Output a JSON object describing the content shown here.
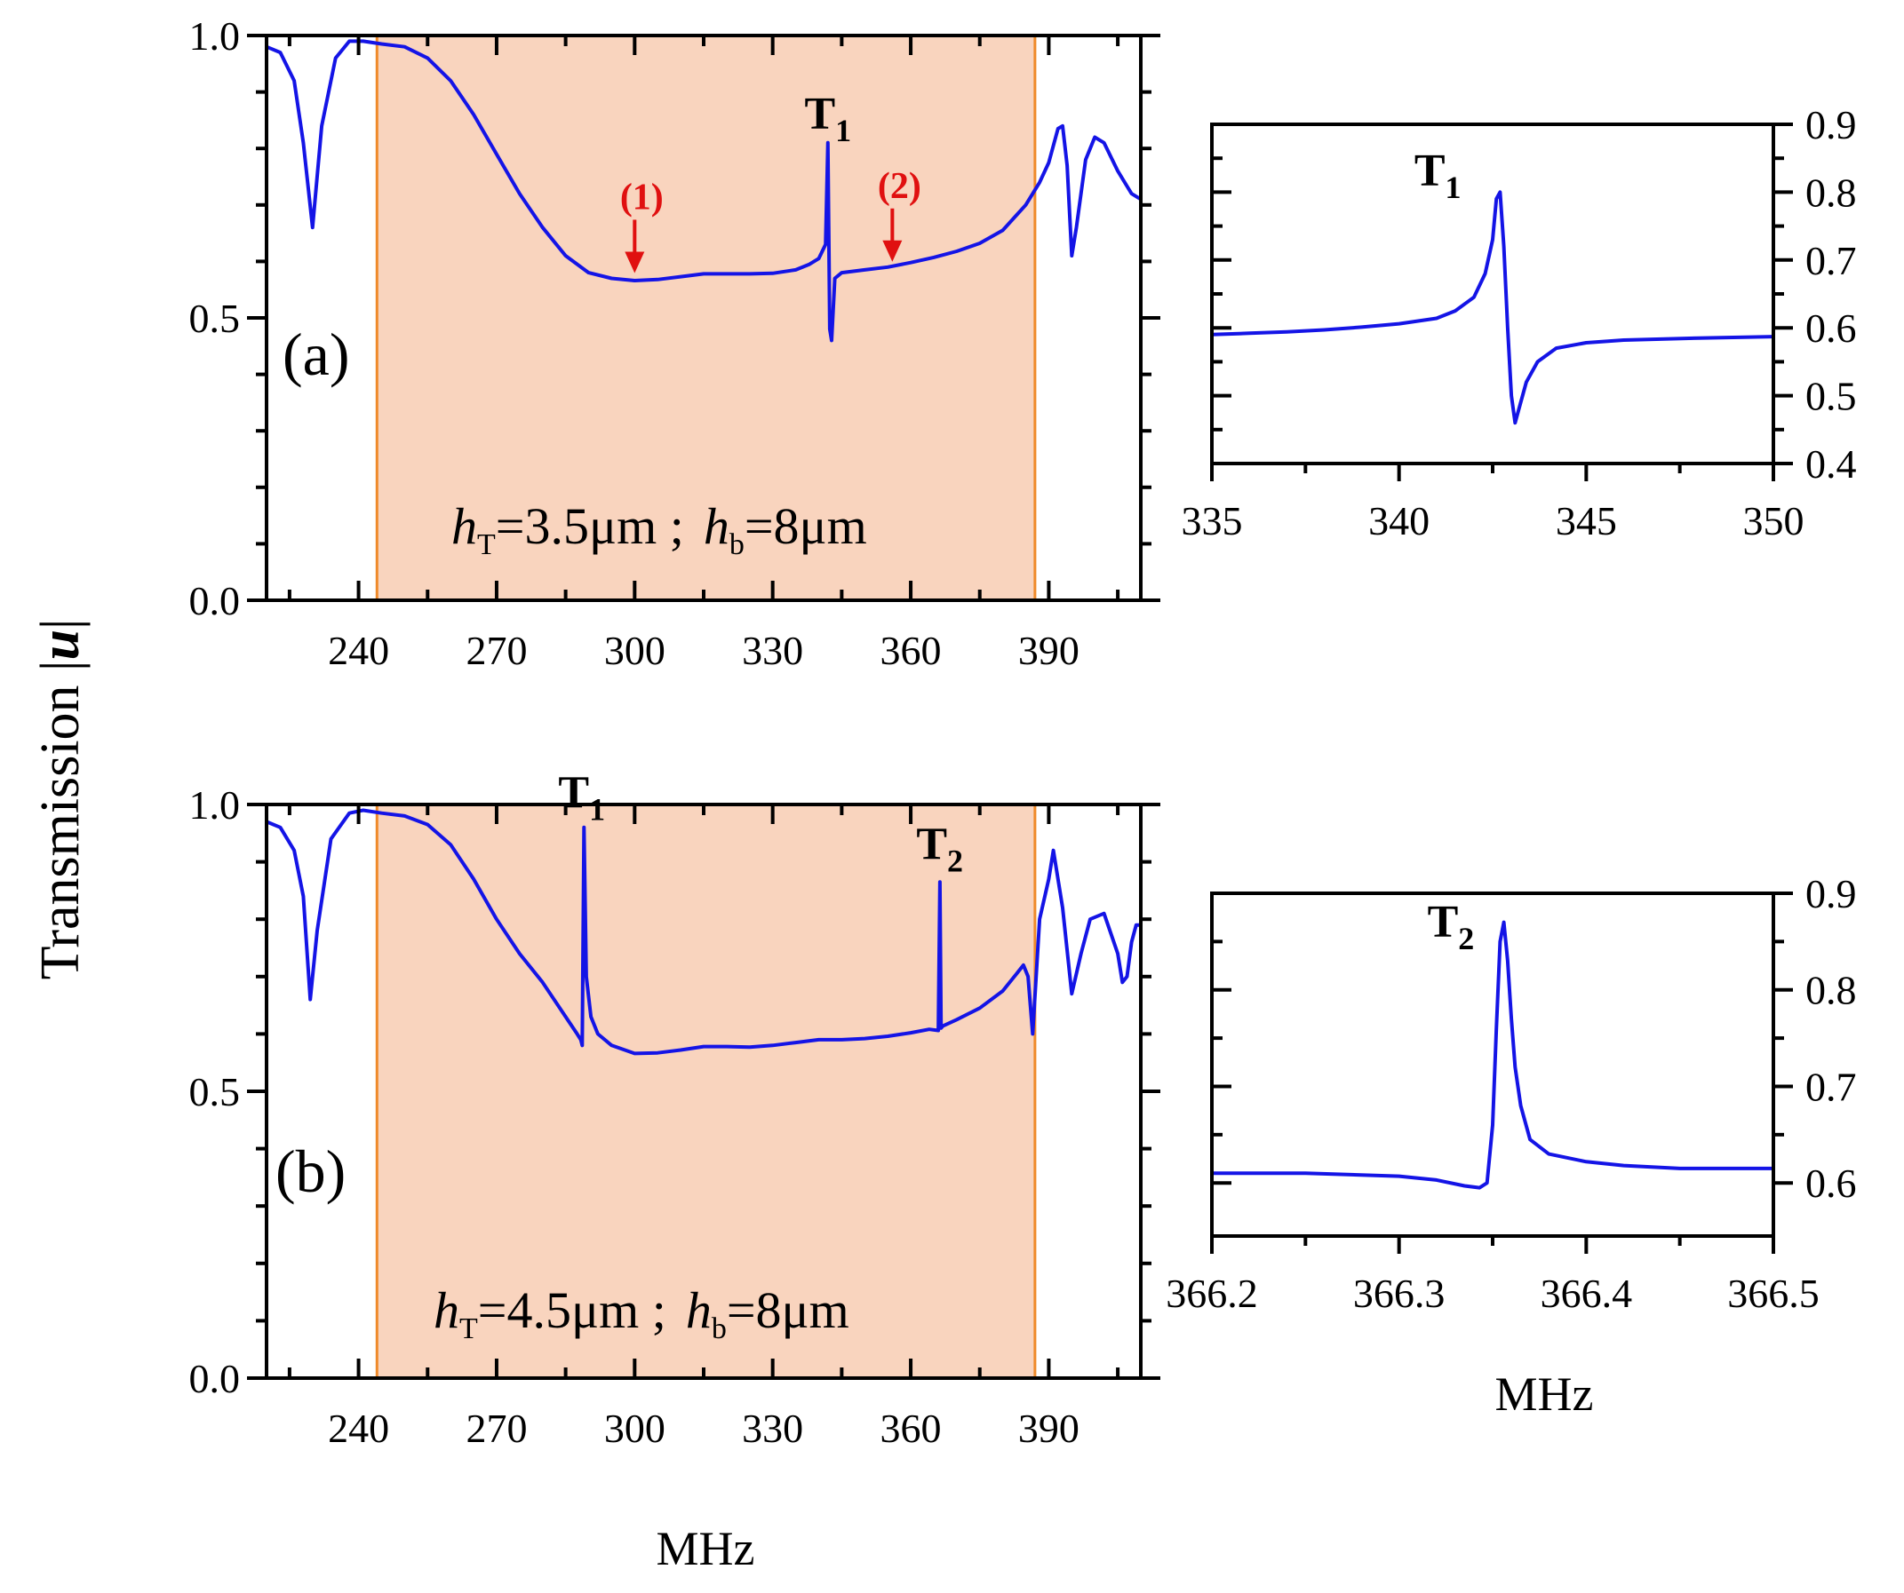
{
  "y_axis_title": "Transmission |",
  "y_axis_title_symbol": "u",
  "y_axis_title_close": "|",
  "shared_xlabel": "MHz",
  "inset_b_xlabel": "MHz",
  "chart_data": [
    {
      "id": "a",
      "type": "line",
      "panel_label": "(a)",
      "annotation": {
        "h_sym": "h",
        "T_sub": "T",
        "hT_value": "=3.5μm ;",
        "b_sub": "b",
        "hb_value": "=8μm"
      },
      "xlim": [
        220,
        410
      ],
      "ylim": [
        0,
        1.0
      ],
      "xticks": [
        240,
        270,
        300,
        330,
        360,
        390
      ],
      "yticks": [
        0.0,
        0.5,
        1.0
      ],
      "ytick_labels": [
        "0.0",
        "0.5",
        "1.0"
      ],
      "shaded_band": [
        244,
        387
      ],
      "peak_labels": [
        {
          "text": "T",
          "sub": "1",
          "x": 342,
          "y": 0.81
        }
      ],
      "arrows": [
        {
          "text": "(1)",
          "x": 300,
          "y": 0.57
        },
        {
          "text": "(2)",
          "x": 356,
          "y": 0.59
        }
      ],
      "series": [
        {
          "name": "transmission",
          "color": "#1414e6",
          "x": [
            220,
            223,
            226,
            228,
            230,
            232,
            235,
            238,
            241,
            245,
            250,
            255,
            260,
            265,
            270,
            275,
            280,
            285,
            290,
            295,
            300,
            305,
            310,
            315,
            320,
            325,
            330,
            335,
            338,
            340,
            341.5,
            342,
            342.4,
            342.8,
            343.5,
            345,
            350,
            355,
            360,
            365,
            370,
            375,
            380,
            385,
            388,
            390,
            392,
            393,
            394,
            395,
            396,
            398,
            400,
            402,
            405,
            408,
            410
          ],
          "values": [
            0.98,
            0.97,
            0.92,
            0.81,
            0.66,
            0.84,
            0.96,
            0.99,
            0.99,
            0.985,
            0.98,
            0.96,
            0.92,
            0.86,
            0.79,
            0.72,
            0.66,
            0.61,
            0.58,
            0.57,
            0.566,
            0.568,
            0.573,
            0.578,
            0.578,
            0.578,
            0.579,
            0.585,
            0.595,
            0.605,
            0.63,
            0.81,
            0.48,
            0.46,
            0.57,
            0.58,
            0.585,
            0.59,
            0.598,
            0.607,
            0.618,
            0.632,
            0.655,
            0.7,
            0.74,
            0.775,
            0.835,
            0.84,
            0.77,
            0.61,
            0.66,
            0.78,
            0.82,
            0.81,
            0.76,
            0.72,
            0.71
          ]
        }
      ]
    },
    {
      "id": "a-inset",
      "type": "line",
      "xlim": [
        335,
        350
      ],
      "ylim": [
        0.4,
        0.9
      ],
      "xticks": [
        335,
        340,
        345,
        350
      ],
      "xtick_labels": [
        "335",
        "340",
        "345",
        "350"
      ],
      "yticks": [
        0.4,
        0.5,
        0.6,
        0.7,
        0.8,
        0.9
      ],
      "ytick_labels": [
        "0.4",
        "0.5",
        "0.6",
        "0.7",
        "0.8",
        "0.9"
      ],
      "peak_labels": [
        {
          "text": "T",
          "sub": "1",
          "x": 341.8,
          "y": 0.81
        }
      ],
      "series": [
        {
          "name": "transmission",
          "color": "#1414e6",
          "x": [
            335,
            336,
            337,
            338,
            339,
            340,
            341,
            341.5,
            342,
            342.3,
            342.5,
            342.6,
            342.7,
            342.8,
            342.9,
            343.0,
            343.1,
            343.2,
            343.4,
            343.7,
            344.2,
            345,
            346,
            348,
            350
          ],
          "values": [
            0.59,
            0.592,
            0.594,
            0.597,
            0.601,
            0.606,
            0.614,
            0.625,
            0.645,
            0.68,
            0.73,
            0.79,
            0.8,
            0.72,
            0.6,
            0.5,
            0.46,
            0.48,
            0.52,
            0.55,
            0.57,
            0.578,
            0.582,
            0.585,
            0.587
          ]
        }
      ]
    },
    {
      "id": "b",
      "type": "line",
      "panel_label": "(b)",
      "annotation": {
        "h_sym": "h",
        "T_sub": "T",
        "hT_value": "=4.5μm ;",
        "b_sub": "b",
        "hb_value": "=8μm"
      },
      "xlim": [
        220,
        410
      ],
      "ylim": [
        0,
        1.0
      ],
      "xticks": [
        240,
        270,
        300,
        330,
        360,
        390
      ],
      "yticks": [
        0.0,
        0.5,
        1.0
      ],
      "ytick_labels": [
        "0.0",
        "0.5",
        "1.0"
      ],
      "shaded_band": [
        244,
        387
      ],
      "peak_labels": [
        {
          "text": "T",
          "sub": "1",
          "x": 288.5,
          "y": 0.97
        },
        {
          "text": "T",
          "sub": "2",
          "x": 366.3,
          "y": 0.88
        }
      ],
      "series": [
        {
          "name": "transmission",
          "color": "#1414e6",
          "x": [
            220,
            223,
            226,
            228,
            229.5,
            231,
            234,
            238,
            241,
            245,
            250,
            255,
            260,
            265,
            270,
            275,
            280,
            285,
            287.5,
            288.3,
            288.6,
            289.0,
            289.5,
            290.5,
            292,
            295,
            300,
            305,
            310,
            315,
            320,
            325,
            330,
            335,
            340,
            345,
            350,
            355,
            360,
            364,
            366.0,
            366.35,
            366.6,
            367,
            370,
            375,
            380,
            383,
            384.5,
            385.5,
            386.5,
            388,
            390,
            391,
            393,
            395,
            397,
            399,
            402,
            405,
            406,
            407,
            408,
            409,
            410
          ],
          "values": [
            0.97,
            0.96,
            0.92,
            0.84,
            0.66,
            0.78,
            0.94,
            0.985,
            0.99,
            0.985,
            0.98,
            0.965,
            0.93,
            0.87,
            0.8,
            0.74,
            0.69,
            0.63,
            0.6,
            0.59,
            0.58,
            0.96,
            0.7,
            0.63,
            0.6,
            0.58,
            0.566,
            0.567,
            0.572,
            0.578,
            0.578,
            0.577,
            0.58,
            0.585,
            0.59,
            0.59,
            0.592,
            0.596,
            0.602,
            0.608,
            0.606,
            0.865,
            0.61,
            0.614,
            0.625,
            0.645,
            0.675,
            0.705,
            0.72,
            0.7,
            0.6,
            0.8,
            0.87,
            0.92,
            0.82,
            0.67,
            0.74,
            0.8,
            0.81,
            0.74,
            0.69,
            0.7,
            0.76,
            0.79,
            0.79
          ]
        }
      ]
    },
    {
      "id": "b-inset",
      "type": "line",
      "xlim": [
        366.2,
        366.5
      ],
      "ylim": [
        0.545,
        0.9
      ],
      "xticks": [
        366.2,
        366.3,
        366.4,
        366.5
      ],
      "xtick_labels": [
        "366.2",
        "366.3",
        "366.4",
        "366.5"
      ],
      "yticks": [
        0.6,
        0.7,
        0.8,
        0.9
      ],
      "ytick_labels": [
        "0.6",
        "0.7",
        "0.8",
        "0.9"
      ],
      "peak_labels": [
        {
          "text": "T",
          "sub": "2",
          "x": 366.343,
          "y": 0.855
        }
      ],
      "series": [
        {
          "name": "transmission",
          "color": "#1414e6",
          "x": [
            366.2,
            366.25,
            366.3,
            366.32,
            366.335,
            366.343,
            366.347,
            366.35,
            366.352,
            366.354,
            366.356,
            366.358,
            366.36,
            366.362,
            366.365,
            366.37,
            366.38,
            366.4,
            366.42,
            366.45,
            366.5
          ],
          "values": [
            0.61,
            0.61,
            0.607,
            0.603,
            0.597,
            0.595,
            0.6,
            0.66,
            0.76,
            0.85,
            0.87,
            0.83,
            0.77,
            0.72,
            0.68,
            0.645,
            0.63,
            0.622,
            0.618,
            0.615,
            0.615
          ]
        }
      ]
    }
  ]
}
